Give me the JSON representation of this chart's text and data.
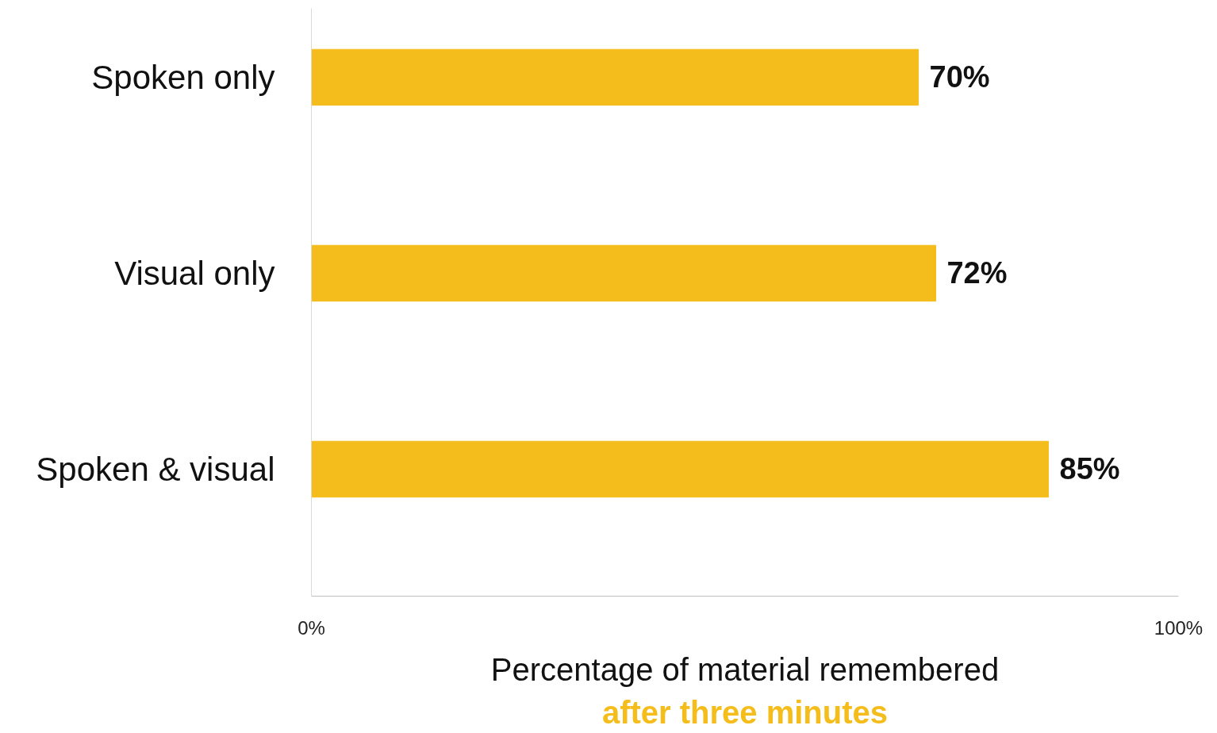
{
  "chart_data": {
    "type": "bar",
    "orientation": "horizontal",
    "categories": [
      "Spoken only",
      "Visual only",
      "Spoken & visual"
    ],
    "values": [
      70,
      72,
      85
    ],
    "value_labels": [
      "70%",
      "72%",
      "85%"
    ],
    "color": "#f4bd1c",
    "xlim": [
      0,
      100
    ],
    "xticks": [
      {
        "value": 0,
        "label": "0%"
      },
      {
        "value": 100,
        "label": "100%"
      }
    ],
    "xlabel": "Percentage of material remembered",
    "annotations": [
      "after three minutes"
    ],
    "grid": false
  }
}
